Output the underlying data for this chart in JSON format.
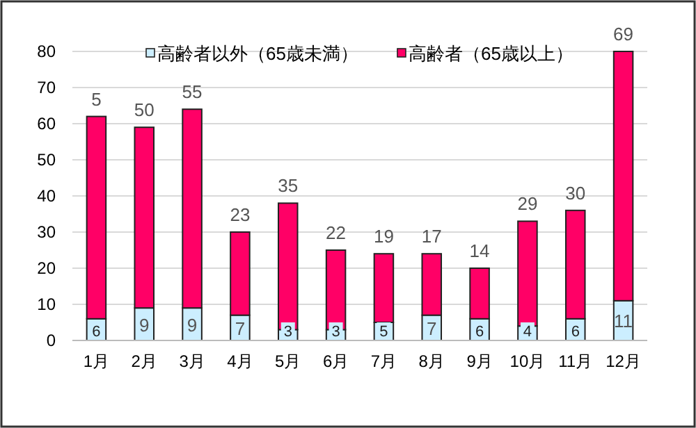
{
  "chart_data": {
    "type": "bar",
    "stacked": true,
    "categories": [
      "1月",
      "2月",
      "3月",
      "4月",
      "5月",
      "6月",
      "7月",
      "8月",
      "9月",
      "10月",
      "11月",
      "12月"
    ],
    "series": [
      {
        "name": "高齢者以外（65歳未満）",
        "color": "#cceeff",
        "values": [
          6,
          9,
          9,
          7,
          3,
          3,
          5,
          7,
          6,
          4,
          6,
          11
        ],
        "value_labels": [
          "6",
          "9",
          "9",
          "7",
          "3",
          "3",
          "5",
          "7",
          "6",
          "4",
          "6",
          "11"
        ]
      },
      {
        "name": "高齢者（65歳以上）",
        "color": "#ff0066",
        "values": [
          56,
          50,
          55,
          23,
          35,
          22,
          19,
          17,
          14,
          29,
          30,
          69
        ],
        "value_labels": [
          null,
          "50",
          "55",
          "23",
          "35",
          "22",
          "19",
          "17",
          "14",
          "29",
          "30",
          "69"
        ]
      }
    ],
    "ylim": [
      0,
      80
    ],
    "yticks": [
      0,
      10,
      20,
      30,
      40,
      50,
      60,
      70,
      80
    ],
    "grid": "y",
    "legend": "top",
    "annotations": [
      {
        "text": "5",
        "x": "1月",
        "y": 62
      }
    ]
  }
}
